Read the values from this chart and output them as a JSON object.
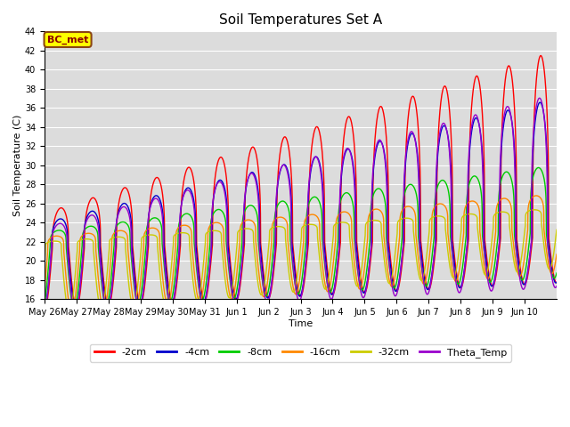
{
  "title": "Soil Temperatures Set A",
  "xlabel": "Time",
  "ylabel": "Soil Temperature (C)",
  "ylim": [
    16,
    44
  ],
  "yticks": [
    16,
    18,
    20,
    22,
    24,
    26,
    28,
    30,
    32,
    34,
    36,
    38,
    40,
    42,
    44
  ],
  "n_days": 16,
  "n_per_day": 144,
  "date_labels": [
    "May 26",
    "May 27",
    "May 28",
    "May 29",
    "May 30",
    "May 31",
    "Jun 1",
    "Jun 2",
    "Jun 3",
    "Jun 4",
    "Jun 5",
    "Jun 6",
    "Jun 7",
    "Jun 8",
    "Jun 9",
    "Jun 10"
  ],
  "colors": {
    "-2cm": "#ff0000",
    "-4cm": "#0000cc",
    "-8cm": "#00cc00",
    "-16cm": "#ff8800",
    "-32cm": "#cccc00",
    "Theta_Temp": "#9900cc"
  },
  "line_width": 1.0,
  "legend_labels": [
    "-2cm",
    "-4cm",
    "-8cm",
    "-16cm",
    "-32cm",
    "Theta_Temp"
  ],
  "annotation_text": "BC_met",
  "annotation_bg": "#ffff00",
  "annotation_border": "#8B4513",
  "background_color": "#dcdcdc",
  "grid_color": "#ffffff",
  "base_2cm": [
    21.5,
    22.5
  ],
  "peak_2cm": [
    25.0,
    42.0
  ],
  "base_4cm": [
    21.5,
    22.5
  ],
  "peak_4cm": [
    24.0,
    37.0
  ],
  "base_8cm": [
    21.5,
    23.0
  ],
  "peak_8cm": [
    23.0,
    30.0
  ],
  "base_16cm": [
    21.0,
    23.5
  ],
  "peak_16cm": [
    22.5,
    27.0
  ],
  "base_32cm": [
    21.0,
    24.0
  ],
  "peak_32cm": [
    22.0,
    25.5
  ],
  "base_theta": [
    21.0,
    22.0
  ],
  "peak_theta": [
    23.5,
    37.5
  ],
  "sharpness": 4.0
}
